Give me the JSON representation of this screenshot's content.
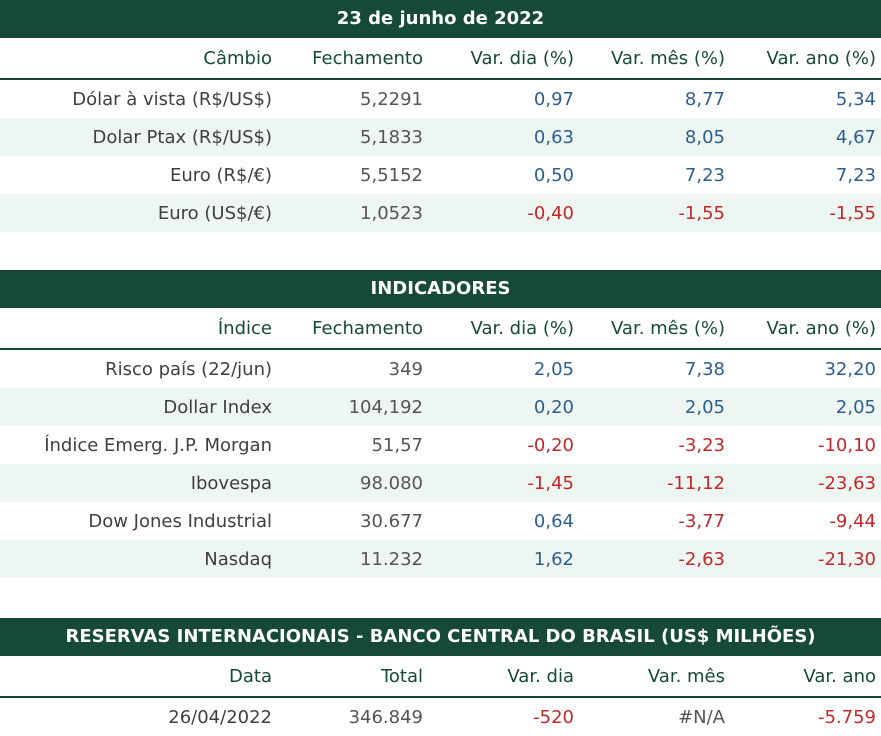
{
  "section1": {
    "title": "23 de junho de 2022",
    "headers": [
      "Câmbio",
      "Fechamento",
      "Var. dia (%)",
      "Var. mês (%)",
      "Var. ano (%)"
    ],
    "rows": [
      [
        "Dólar à vista (R$/US$)",
        "5,2291",
        "0,97",
        "8,77",
        "5,34"
      ],
      [
        "Dolar Ptax (R$/US$)",
        "5,1833",
        "0,63",
        "8,05",
        "4,67"
      ],
      [
        "Euro (R$/€)",
        "5,5152",
        "0,50",
        "7,23",
        "7,23"
      ],
      [
        "Euro (US$/€)",
        "1,0523",
        "-0,40",
        "-1,55",
        "-1,55"
      ]
    ]
  },
  "section2": {
    "title": "INDICADORES",
    "headers": [
      "Índice",
      "Fechamento",
      "Var. dia (%)",
      "Var. mês (%)",
      "Var. ano (%)"
    ],
    "rows": [
      [
        "Risco país (22/jun)",
        "349",
        "2,05",
        "7,38",
        "32,20"
      ],
      [
        "Dollar Index",
        "104,192",
        "0,20",
        "2,05",
        "2,05"
      ],
      [
        "Índice Emerg. J.P. Morgan",
        "51,57",
        "-0,20",
        "-3,23",
        "-10,10"
      ],
      [
        "Ibovespa",
        "98.080",
        "-1,45",
        "-11,12",
        "-23,63"
      ],
      [
        "Dow Jones Industrial",
        "30.677",
        "0,64",
        "-3,77",
        "-9,44"
      ],
      [
        "Nasdaq",
        "11.232",
        "1,62",
        "-2,63",
        "-21,30"
      ]
    ]
  },
  "section3": {
    "title": "RESERVAS INTERNACIONAIS - BANCO CENTRAL DO BRASIL (US$ MILHÕES)",
    "headers": [
      "Data",
      "Total",
      "Var. dia",
      "Var. mês",
      "Var. ano"
    ],
    "rows": [
      [
        "26/04/2022",
        "346.849",
        "-520",
        "#N/A",
        "-5.759"
      ]
    ]
  },
  "colors": {
    "banner": "#174a36",
    "positive": "#2e5e8f",
    "negative": "#c0282c",
    "shaded_row": "#eef6f1"
  }
}
